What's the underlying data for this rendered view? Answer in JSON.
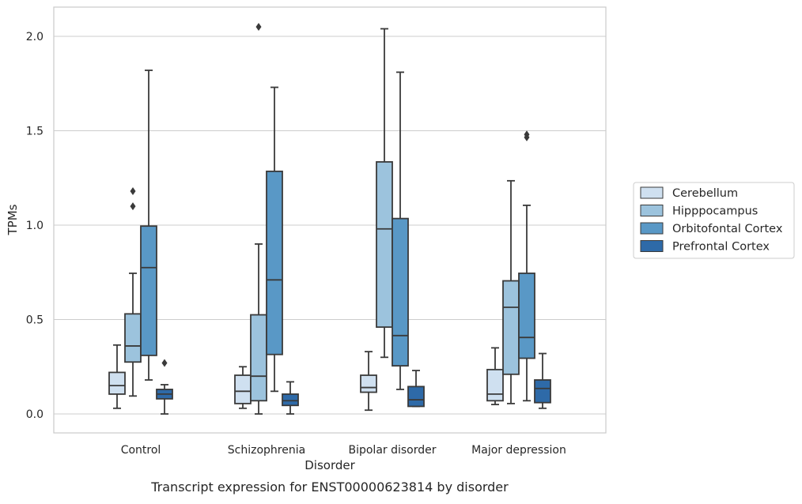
{
  "chart_data": {
    "type": "box",
    "title": "",
    "caption": "Transcript expression for ENST00000623814 by disorder",
    "xlabel": "Disorder",
    "ylabel": "TPMs",
    "ylim": [
      -0.1,
      2.16
    ],
    "yticks": [
      "0.0",
      "0.5",
      "1.0",
      "1.5",
      "2.0"
    ],
    "grid": "horizontal",
    "legend_position": "right",
    "categories": [
      "Control",
      "Schizophrenia",
      "Bipolar disorder",
      "Major depression"
    ],
    "series": [
      {
        "name": "Cerebellum",
        "color": "#cfe0f0",
        "boxes": [
          {
            "whisker_low": 0.03,
            "q1": 0.105,
            "median": 0.15,
            "q3": 0.22,
            "whisker_high": 0.365,
            "outliers": []
          },
          {
            "whisker_low": 0.03,
            "q1": 0.055,
            "median": 0.12,
            "q3": 0.205,
            "whisker_high": 0.25,
            "outliers": []
          },
          {
            "whisker_low": 0.02,
            "q1": 0.115,
            "median": 0.14,
            "q3": 0.205,
            "whisker_high": 0.33,
            "outliers": []
          },
          {
            "whisker_low": 0.05,
            "q1": 0.07,
            "median": 0.105,
            "q3": 0.235,
            "whisker_high": 0.35,
            "outliers": []
          }
        ]
      },
      {
        "name": "Hipppocampus",
        "color": "#9cc3dd",
        "boxes": [
          {
            "whisker_low": 0.095,
            "q1": 0.275,
            "median": 0.36,
            "q3": 0.53,
            "whisker_high": 0.745,
            "outliers": [
              1.1,
              1.18
            ]
          },
          {
            "whisker_low": 0.0,
            "q1": 0.07,
            "median": 0.2,
            "q3": 0.525,
            "whisker_high": 0.9,
            "outliers": [
              2.05
            ]
          },
          {
            "whisker_low": 0.3,
            "q1": 0.46,
            "median": 0.98,
            "q3": 1.335,
            "whisker_high": 2.04,
            "outliers": []
          },
          {
            "whisker_low": 0.055,
            "q1": 0.21,
            "median": 0.565,
            "q3": 0.705,
            "whisker_high": 1.235,
            "outliers": []
          }
        ]
      },
      {
        "name": "Orbitofontal Cortex",
        "color": "#5998c6",
        "boxes": [
          {
            "whisker_low": 0.18,
            "q1": 0.31,
            "median": 0.775,
            "q3": 0.995,
            "whisker_high": 1.82,
            "outliers": []
          },
          {
            "whisker_low": 0.12,
            "q1": 0.315,
            "median": 0.71,
            "q3": 1.285,
            "whisker_high": 1.73,
            "outliers": []
          },
          {
            "whisker_low": 0.13,
            "q1": 0.255,
            "median": 0.415,
            "q3": 1.035,
            "whisker_high": 1.81,
            "outliers": []
          },
          {
            "whisker_low": 0.07,
            "q1": 0.295,
            "median": 0.405,
            "q3": 0.745,
            "whisker_high": 1.105,
            "outliers": [
              1.465,
              1.48
            ]
          }
        ]
      },
      {
        "name": "Prefrontal Cortex",
        "color": "#2e6aa8",
        "boxes": [
          {
            "whisker_low": 0.0,
            "q1": 0.08,
            "median": 0.105,
            "q3": 0.13,
            "whisker_high": 0.155,
            "outliers": [
              0.27
            ]
          },
          {
            "whisker_low": 0.0,
            "q1": 0.045,
            "median": 0.07,
            "q3": 0.105,
            "whisker_high": 0.17,
            "outliers": []
          },
          {
            "whisker_low": 0.04,
            "q1": 0.04,
            "median": 0.075,
            "q3": 0.145,
            "whisker_high": 0.23,
            "outliers": []
          },
          {
            "whisker_low": 0.03,
            "q1": 0.06,
            "median": 0.135,
            "q3": 0.18,
            "whisker_high": 0.32,
            "outliers": []
          }
        ]
      }
    ]
  }
}
